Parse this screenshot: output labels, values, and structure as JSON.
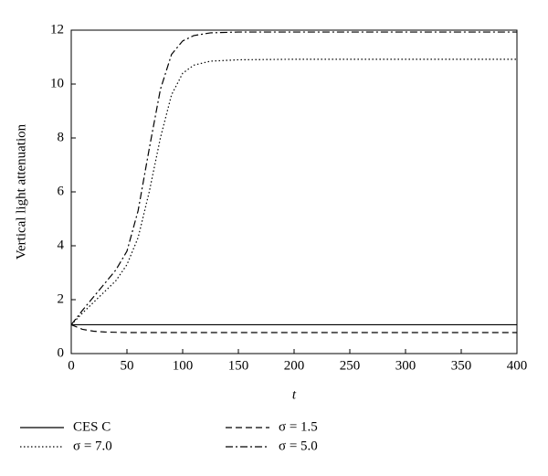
{
  "chart_data": {
    "type": "line",
    "xlabel": "t",
    "ylabel": "Vertical light attenuation",
    "x": [
      0,
      10,
      20,
      30,
      40,
      50,
      60,
      70,
      80,
      90,
      100,
      110,
      125,
      150,
      200,
      250,
      300,
      350,
      400
    ],
    "series": [
      {
        "name": "CES C",
        "color": "#000000",
        "dash": "solid",
        "values": [
          1.07,
          1.07,
          1.07,
          1.07,
          1.07,
          1.07,
          1.07,
          1.07,
          1.07,
          1.07,
          1.07,
          1.07,
          1.07,
          1.07,
          1.07,
          1.07,
          1.07,
          1.07,
          1.07
        ]
      },
      {
        "name": "σ = 1.5",
        "color": "#000000",
        "dash": "dashed",
        "values": [
          1.07,
          0.9,
          0.83,
          0.8,
          0.79,
          0.78,
          0.78,
          0.78,
          0.78,
          0.78,
          0.78,
          0.78,
          0.78,
          0.78,
          0.78,
          0.78,
          0.78,
          0.78,
          0.78
        ]
      },
      {
        "name": "σ = 7.0",
        "color": "#000000",
        "dash": "dotted",
        "values": [
          1.07,
          1.5,
          1.9,
          2.3,
          2.7,
          3.3,
          4.3,
          6.0,
          8.0,
          9.6,
          10.4,
          10.7,
          10.85,
          10.9,
          10.92,
          10.92,
          10.92,
          10.92,
          10.92
        ]
      },
      {
        "name": "σ = 5.0",
        "color": "#000000",
        "dash": "dashdot",
        "values": [
          1.07,
          1.6,
          2.1,
          2.6,
          3.1,
          3.8,
          5.3,
          7.6,
          9.8,
          11.1,
          11.6,
          11.8,
          11.9,
          11.93,
          11.93,
          11.93,
          11.93,
          11.93,
          11.93
        ]
      }
    ],
    "xlim": [
      0,
      400
    ],
    "xticks": [
      0,
      50,
      100,
      150,
      200,
      250,
      300,
      350,
      400
    ],
    "ylim": [
      0,
      12
    ],
    "yticks": [
      0,
      2,
      4,
      6,
      8,
      10,
      12
    ],
    "legend": "bottom"
  }
}
